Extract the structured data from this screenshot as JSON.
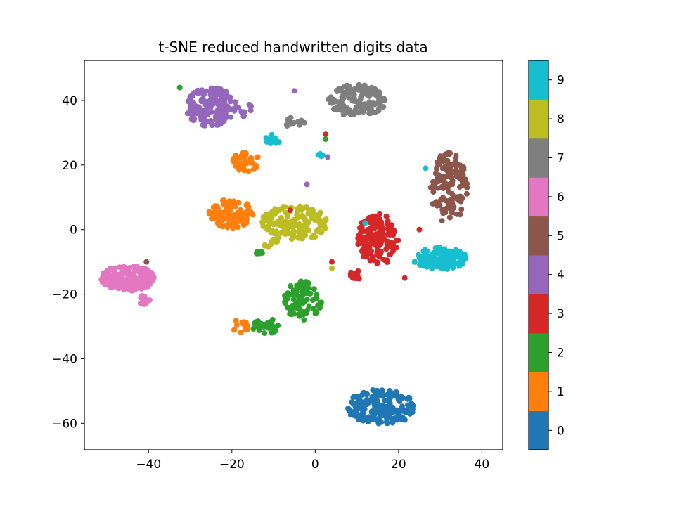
{
  "chart_data": {
    "type": "scatter",
    "title": "t-SNE reduced handwritten digits data",
    "xlabel": "",
    "ylabel": "",
    "xlim": [
      -55.4,
      45.0
    ],
    "ylim": [
      -68.2,
      52.4
    ],
    "xticks": [
      -40,
      -20,
      0,
      20,
      40
    ],
    "xtick_labels": [
      "−40",
      "−20",
      "0",
      "20",
      "40"
    ],
    "yticks": [
      -60,
      -40,
      -20,
      0,
      20,
      40
    ],
    "ytick_labels": [
      "−60",
      "−40",
      "−20",
      "0",
      "20",
      "40"
    ],
    "grid": false,
    "colorbar": {
      "min": -0.5,
      "max": 9.5,
      "ticks": [
        0,
        1,
        2,
        3,
        4,
        5,
        6,
        7,
        8,
        9
      ],
      "tick_labels": [
        "0",
        "1",
        "2",
        "3",
        "4",
        "5",
        "6",
        "7",
        "8",
        "9"
      ],
      "colors": [
        "#1f77b4",
        "#ff7f0e",
        "#2ca02c",
        "#d62728",
        "#9467bd",
        "#8c564b",
        "#e377c2",
        "#7f7f7f",
        "#bcbd22",
        "#17becf"
      ]
    },
    "clusters": [
      {
        "label": 0,
        "regions": [
          {
            "cx": 16,
            "cy": -55,
            "rx": 8.5,
            "ry": 5.5,
            "n": 190
          }
        ]
      },
      {
        "label": 1,
        "regions": [
          {
            "cx": -20,
            "cy": 5,
            "rx": 5.5,
            "ry": 4.5,
            "n": 110
          },
          {
            "cx": -16.5,
            "cy": 21,
            "rx": 3.5,
            "ry": 3,
            "n": 45
          },
          {
            "cx": -18,
            "cy": -30,
            "rx": 2.2,
            "ry": 2,
            "n": 15
          }
        ]
      },
      {
        "label": 2,
        "regions": [
          {
            "cx": -3,
            "cy": -22,
            "rx": 4.5,
            "ry": 6,
            "n": 85
          },
          {
            "cx": -12,
            "cy": -30,
            "rx": 3.5,
            "ry": 2.5,
            "n": 30
          },
          {
            "cx": -14,
            "cy": -7,
            "rx": 1.5,
            "ry": 1,
            "n": 6
          }
        ]
      },
      {
        "label": 3,
        "regions": [
          {
            "cx": 15,
            "cy": -3,
            "rx": 5,
            "ry": 8,
            "n": 150
          },
          {
            "cx": 10,
            "cy": -14,
            "rx": 2,
            "ry": 1.5,
            "n": 12
          }
        ]
      },
      {
        "label": 4,
        "regions": [
          {
            "cx": -25,
            "cy": 38,
            "rx": 6,
            "ry": 6,
            "n": 150
          },
          {
            "cx": -17,
            "cy": 37,
            "rx": 3,
            "ry": 2,
            "n": 12
          }
        ]
      },
      {
        "label": 5,
        "regions": [
          {
            "cx": 32,
            "cy": 13,
            "rx": 4.5,
            "ry": 11,
            "n": 140
          }
        ]
      },
      {
        "label": 6,
        "regions": [
          {
            "cx": -45,
            "cy": -15,
            "rx": 6.5,
            "ry": 4,
            "n": 170
          },
          {
            "cx": -41,
            "cy": -22,
            "rx": 1.5,
            "ry": 2,
            "n": 10
          }
        ]
      },
      {
        "label": 7,
        "regions": [
          {
            "cx": 10,
            "cy": 40,
            "rx": 7,
            "ry": 5,
            "n": 140
          },
          {
            "cx": -5,
            "cy": 33,
            "rx": 2.5,
            "ry": 2,
            "n": 15
          }
        ]
      },
      {
        "label": 8,
        "regions": [
          {
            "cx": -5,
            "cy": 2,
            "rx": 8,
            "ry": 5.5,
            "n": 160
          },
          {
            "cx": -11,
            "cy": -4,
            "rx": 2,
            "ry": 1.5,
            "n": 10
          }
        ]
      },
      {
        "label": 9,
        "regions": [
          {
            "cx": 30,
            "cy": -9,
            "rx": 6.5,
            "ry": 3.5,
            "n": 130
          },
          {
            "cx": -10,
            "cy": 28,
            "rx": 2,
            "ry": 1.5,
            "n": 12
          },
          {
            "cx": 1,
            "cy": 23,
            "rx": 1,
            "ry": 0.8,
            "n": 5
          }
        ]
      }
    ],
    "outliers": [
      {
        "x": -32.5,
        "y": 44,
        "label": 2
      },
      {
        "x": -5,
        "y": 43,
        "label": 4
      },
      {
        "x": 2.5,
        "y": 29.5,
        "label": 3
      },
      {
        "x": 2.5,
        "y": 28,
        "label": 2
      },
      {
        "x": 3,
        "y": 22.5,
        "label": 4
      },
      {
        "x": -2,
        "y": 14,
        "label": 4
      },
      {
        "x": -6,
        "y": 6,
        "label": 3
      },
      {
        "x": 4,
        "y": -10,
        "label": 3
      },
      {
        "x": 4,
        "y": -12,
        "label": 8
      },
      {
        "x": -40.5,
        "y": -10,
        "label": 5
      },
      {
        "x": 12,
        "y": 2,
        "label": 9
      },
      {
        "x": 26.5,
        "y": 19,
        "label": 9
      },
      {
        "x": 25,
        "y": 0,
        "label": 3
      },
      {
        "x": 21.5,
        "y": -15,
        "label": 3
      }
    ]
  }
}
